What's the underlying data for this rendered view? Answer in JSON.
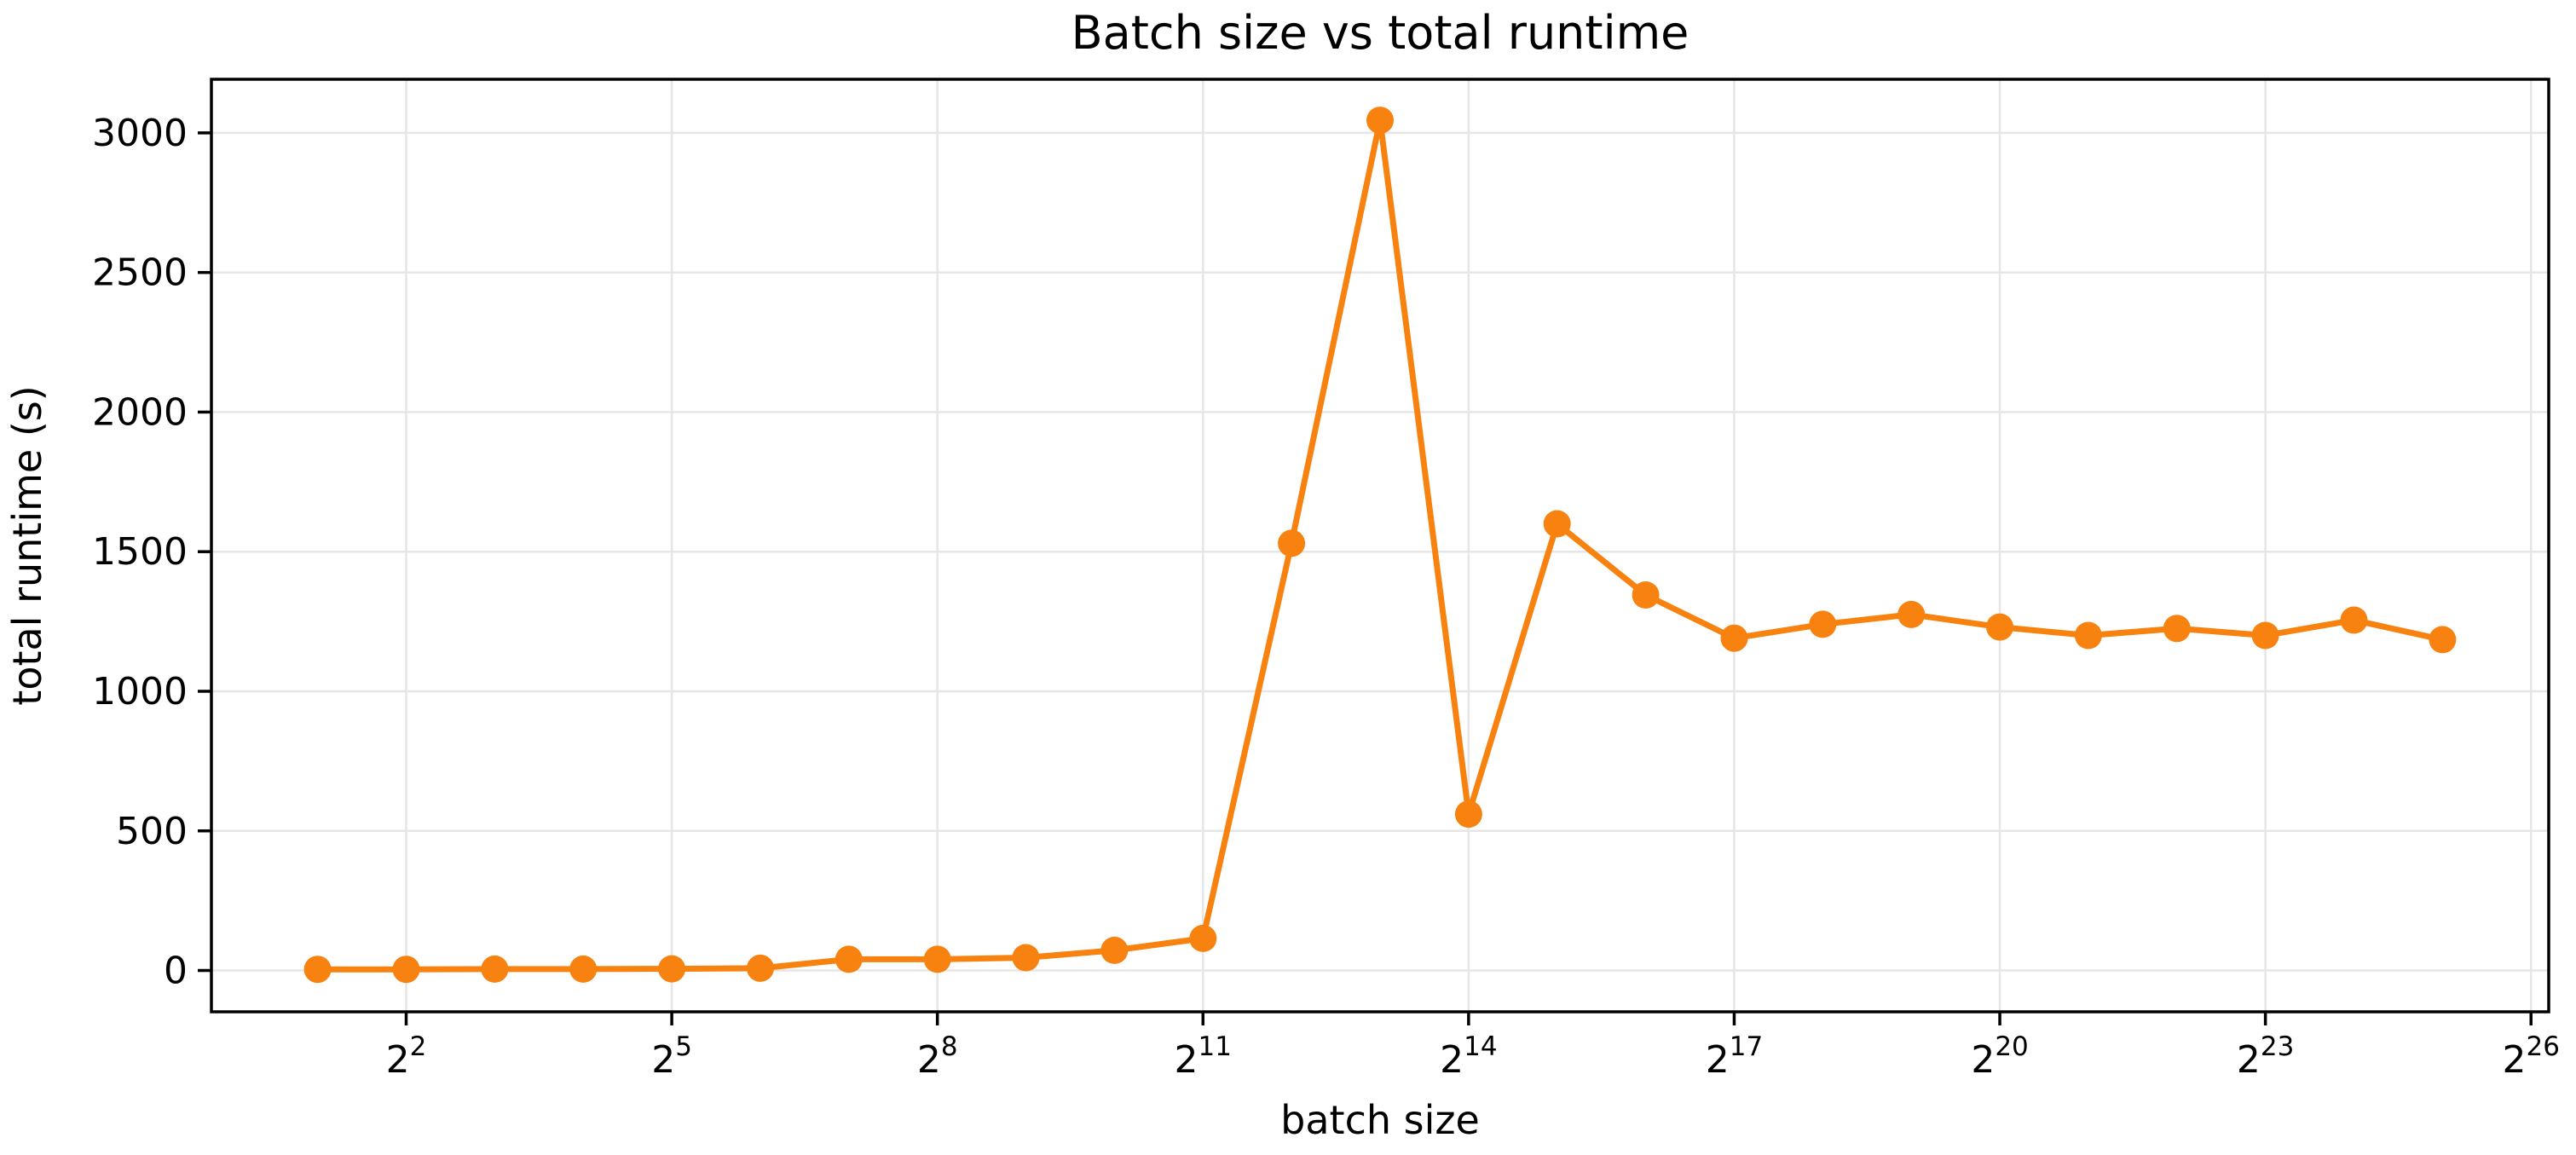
{
  "figure": {
    "title": "Batch size vs total runtime",
    "xlabel": "batch size",
    "ylabel": "total runtime (s)",
    "background": "#ffffff"
  },
  "chart_data": {
    "type": "line",
    "title": "Batch size vs total runtime",
    "xlabel": "batch size",
    "ylabel": "total runtime (s)",
    "x_scale": "log2",
    "series": [
      {
        "name": "total runtime",
        "color": "#f8820f",
        "marker": "circle",
        "x_exponents": [
          1,
          2,
          3,
          4,
          5,
          6,
          7,
          8,
          9,
          10,
          11,
          12,
          13,
          14,
          15,
          16,
          17,
          18,
          19,
          20,
          21,
          22,
          23,
          24,
          25
        ],
        "x_values": [
          2,
          4,
          8,
          16,
          32,
          64,
          128,
          256,
          512,
          1024,
          2048,
          4096,
          8192,
          16384,
          32768,
          65536,
          131072,
          262144,
          524288,
          1048576,
          2097152,
          4194304,
          8388608,
          16777216,
          33554432
        ],
        "values": [
          4,
          4,
          5,
          5,
          6,
          8,
          40,
          40,
          46,
          72,
          115,
          1530,
          3045,
          560,
          1600,
          1345,
          1190,
          1240,
          1275,
          1230,
          1200,
          1225,
          1200,
          1255,
          1185
        ]
      }
    ],
    "x_ticks": {
      "base": "2",
      "exponents": [
        2,
        5,
        8,
        11,
        14,
        17,
        20,
        23,
        26
      ]
    },
    "y_ticks": [
      0,
      500,
      1000,
      1500,
      2000,
      2500,
      3000
    ],
    "y_tick_labels": [
      "0",
      "500",
      "1000",
      "1500",
      "2000",
      "2500",
      "3000"
    ],
    "xlim_exponents": [
      -0.2,
      26.2
    ],
    "ylim": [
      -148,
      3192
    ],
    "grid": true,
    "grid_color": "#e6e6e6",
    "axis_color": "#000000",
    "text_color": "#000000",
    "legend": "none"
  }
}
